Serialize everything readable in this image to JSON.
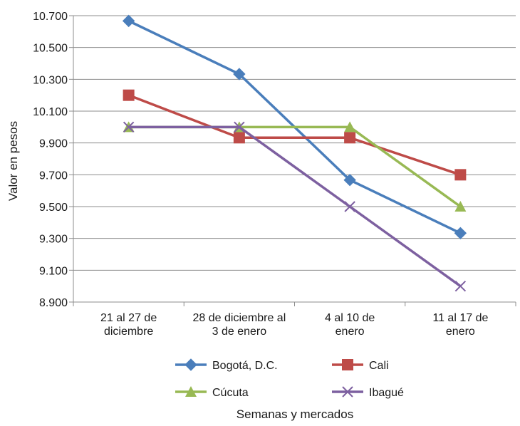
{
  "chart_data": {
    "type": "line",
    "title": "",
    "xlabel": "Semanas y mercados",
    "ylabel": "Valor en pesos",
    "ylim": [
      8900,
      10700
    ],
    "yticks": [
      8900,
      9100,
      9300,
      9500,
      9700,
      9900,
      10100,
      10300,
      10500,
      10700
    ],
    "ytick_labels": [
      "8.900",
      "9.100",
      "9.300",
      "9.500",
      "9.700",
      "9.900",
      "10.100",
      "10.300",
      "10.500",
      "10.700"
    ],
    "grid": true,
    "legend_position": "bottom",
    "categories": [
      [
        "21 al 27 de",
        "diciembre"
      ],
      [
        "28 de diciembre al",
        "3 de enero"
      ],
      [
        "4 al 10 de",
        "enero"
      ],
      [
        "11 al 17 de",
        "enero"
      ]
    ],
    "series": [
      {
        "name": "Bogotá, D.C.",
        "values": [
          10667,
          10333,
          9667,
          9333
        ],
        "color": "#4a7ebb",
        "marker": "diamond"
      },
      {
        "name": "Cali",
        "values": [
          10200,
          9933,
          9933,
          9700
        ],
        "color": "#be4b48",
        "marker": "square"
      },
      {
        "name": "Cúcuta",
        "values": [
          10000,
          10000,
          10000,
          9500
        ],
        "color": "#98b954",
        "marker": "triangle"
      },
      {
        "name": "Ibagué",
        "values": [
          10000,
          10000,
          9500,
          9000
        ],
        "color": "#7d60a0",
        "marker": "x"
      }
    ]
  }
}
